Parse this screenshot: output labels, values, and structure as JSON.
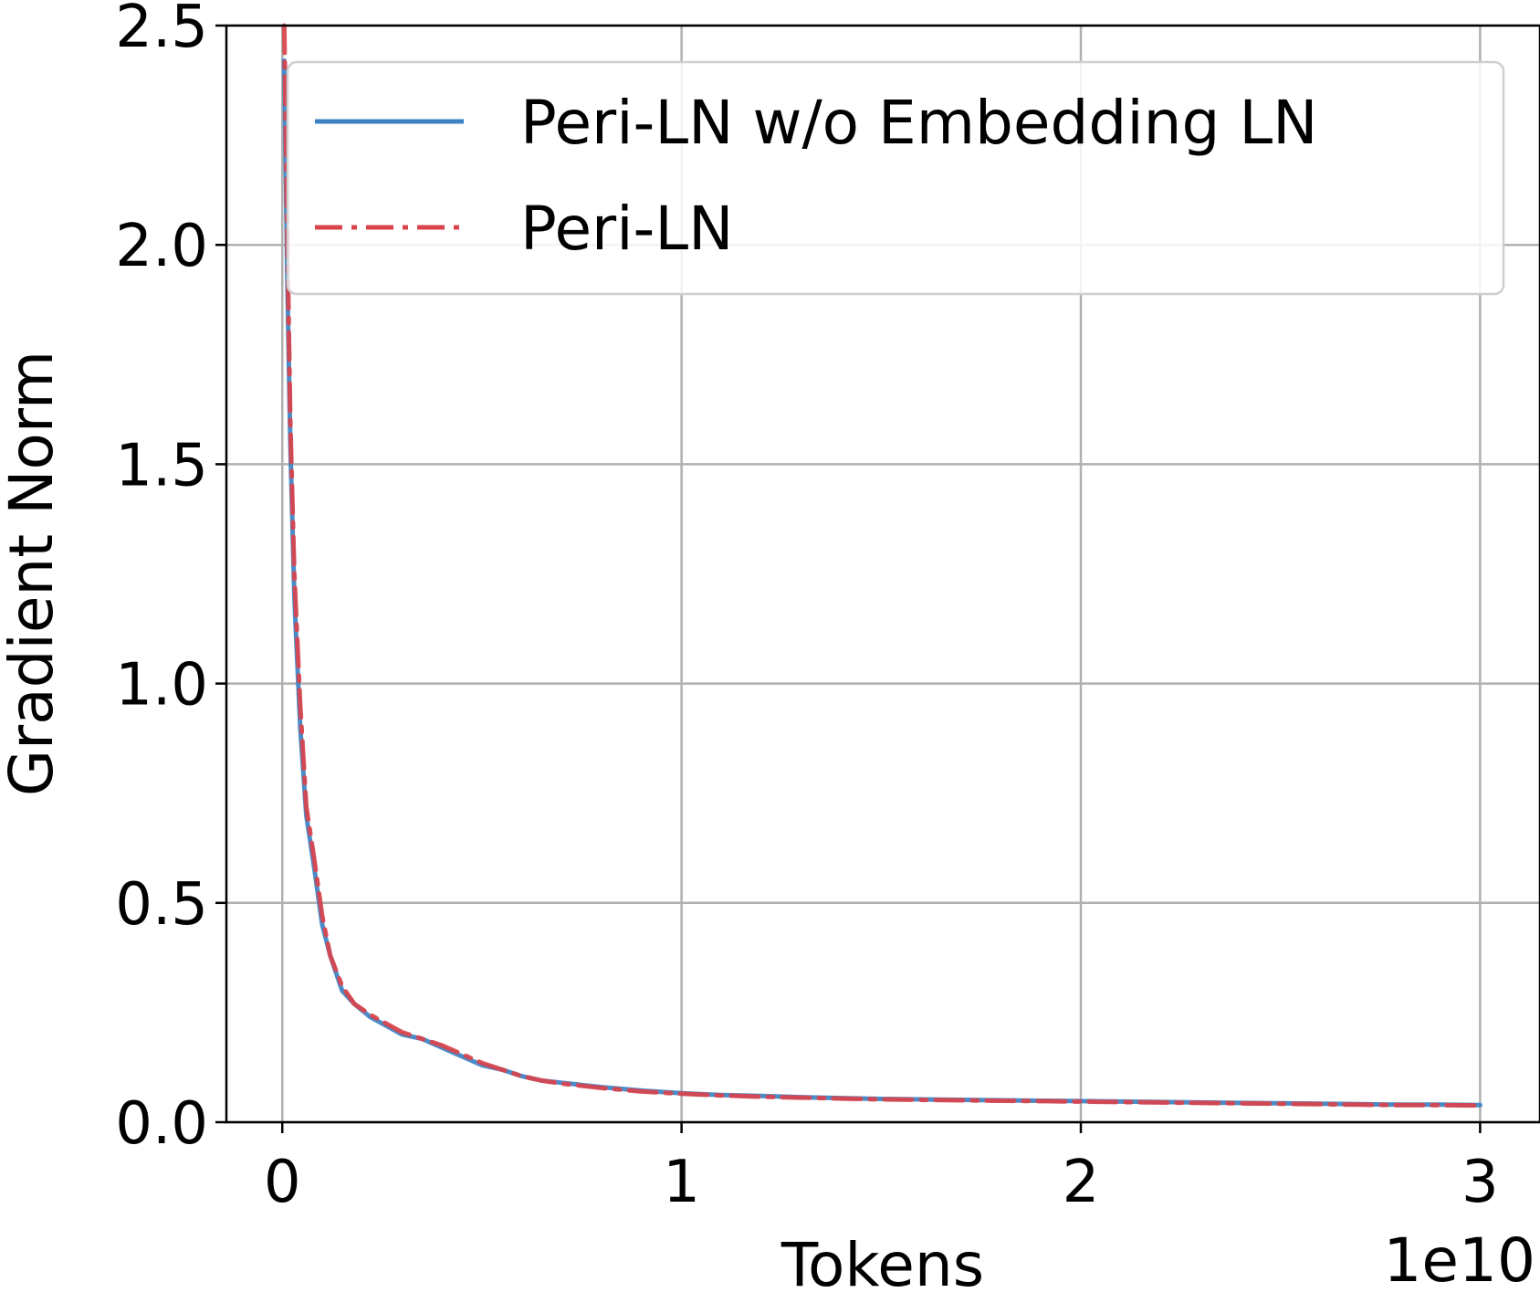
{
  "chart_data": {
    "type": "line",
    "xlabel": "Tokens",
    "ylabel": "Gradient Norm",
    "x_scale_label": "1e10",
    "xlim": [
      -0.14,
      3.15
    ],
    "ylim": [
      0,
      2.5
    ],
    "xticks": [
      0,
      1,
      2,
      3
    ],
    "xtick_labels": [
      "0",
      "1",
      "2",
      "3"
    ],
    "yticks": [
      0,
      0.5,
      1.0,
      1.5,
      2.0,
      2.5
    ],
    "ytick_labels": [
      "0.0",
      "0.5",
      "1.0",
      "1.5",
      "2.0",
      "2.5"
    ],
    "grid": true,
    "legend_position": "top-right",
    "x_unit_multiplier": 10000000000.0,
    "series": [
      {
        "name": "Peri-LN w/o Embedding LN",
        "color": "#3b82c4",
        "line_style": "solid",
        "x": [
          0.005,
          0.012,
          0.02,
          0.03,
          0.045,
          0.06,
          0.08,
          0.1,
          0.12,
          0.15,
          0.18,
          0.22,
          0.26,
          0.3,
          0.35,
          0.4,
          0.45,
          0.5,
          0.55,
          0.6,
          0.65,
          0.7,
          0.8,
          0.9,
          1.0,
          1.1,
          1.2,
          1.3,
          1.4,
          1.5,
          1.6,
          1.7,
          1.8,
          1.9,
          2.0,
          2.1,
          2.2,
          2.3,
          2.4,
          2.5,
          2.6,
          2.7,
          2.8,
          2.9,
          3.0
        ],
        "y": [
          2.42,
          1.95,
          1.55,
          1.2,
          0.9,
          0.7,
          0.58,
          0.45,
          0.38,
          0.3,
          0.27,
          0.24,
          0.22,
          0.2,
          0.19,
          0.17,
          0.15,
          0.13,
          0.12,
          0.105,
          0.095,
          0.09,
          0.08,
          0.072,
          0.066,
          0.062,
          0.06,
          0.057,
          0.055,
          0.053,
          0.052,
          0.051,
          0.05,
          0.049,
          0.048,
          0.047,
          0.046,
          0.045,
          0.044,
          0.043,
          0.042,
          0.041,
          0.04,
          0.04,
          0.039
        ]
      },
      {
        "name": "Peri-LN",
        "color": "#d9434b",
        "line_style": "dashdot",
        "x": [
          0.005,
          0.012,
          0.02,
          0.03,
          0.045,
          0.06,
          0.08,
          0.1,
          0.12,
          0.15,
          0.18,
          0.22,
          0.26,
          0.3,
          0.35,
          0.4,
          0.45,
          0.5,
          0.55,
          0.6,
          0.65,
          0.7,
          0.8,
          0.9,
          1.0,
          1.1,
          1.2,
          1.3,
          1.4,
          1.5,
          1.6,
          1.7,
          1.8,
          1.9,
          2.0,
          2.1,
          2.2,
          2.3,
          2.4,
          2.5,
          2.6,
          2.7,
          2.8,
          2.9,
          3.0
        ],
        "y": [
          2.5,
          2.05,
          1.6,
          1.25,
          0.95,
          0.72,
          0.6,
          0.47,
          0.38,
          0.31,
          0.27,
          0.245,
          0.225,
          0.205,
          0.19,
          0.175,
          0.155,
          0.135,
          0.12,
          0.105,
          0.095,
          0.088,
          0.078,
          0.07,
          0.065,
          0.061,
          0.058,
          0.056,
          0.054,
          0.052,
          0.051,
          0.05,
          0.049,
          0.048,
          0.047,
          0.046,
          0.045,
          0.044,
          0.043,
          0.042,
          0.041,
          0.04,
          0.039,
          0.039,
          0.038
        ]
      }
    ]
  }
}
